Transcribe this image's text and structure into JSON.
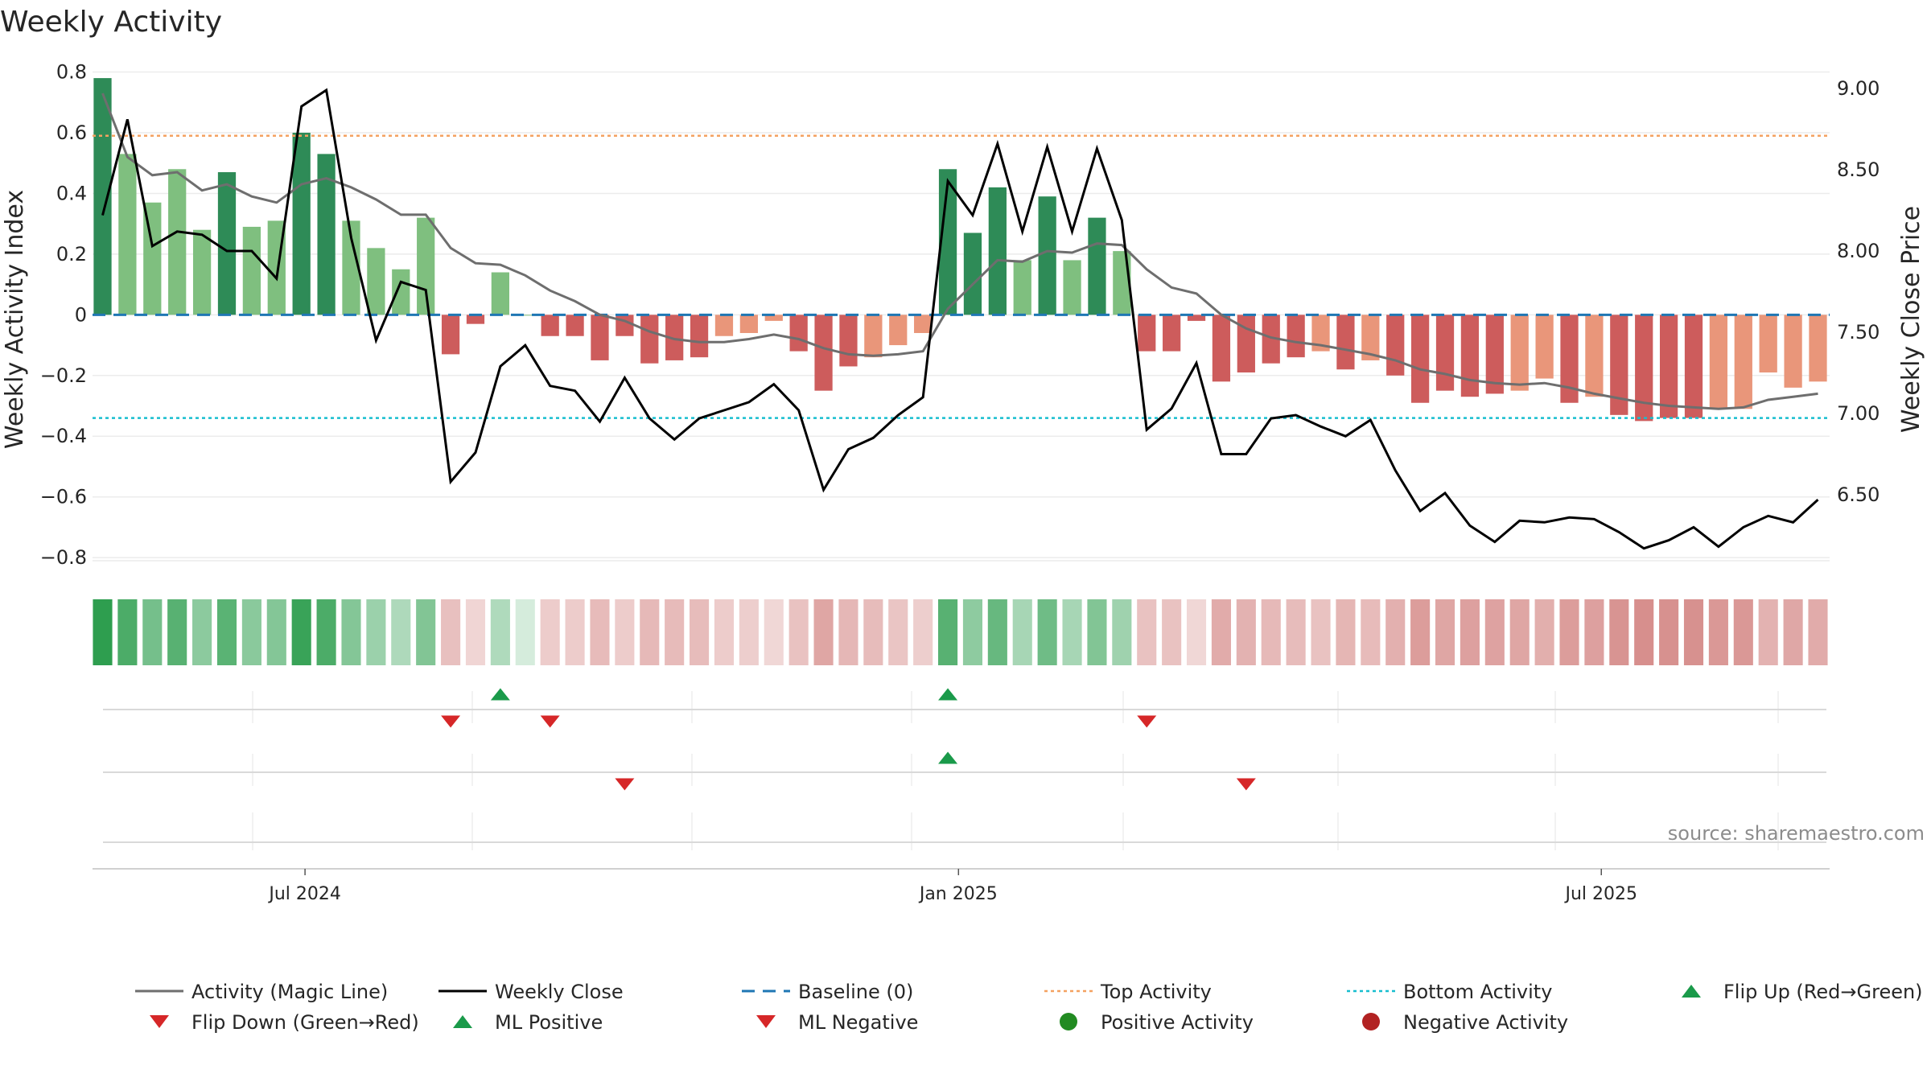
{
  "colors": {
    "strong_pos": "#2e8b57",
    "weak_pos": "#7fbf7f",
    "strong_neg": "#cd5c5c",
    "weak_neg": "#e9967a",
    "magic": "#6e6e6e",
    "close": "#000000",
    "baseline": "#1f77b4",
    "top": "#f4a261",
    "bottom": "#17becf",
    "flip_up": "#1a9a4a",
    "flip_down": "#d62728",
    "pos_dot": "#228b22",
    "neg_dot": "#b22222"
  },
  "chart_data": {
    "type": "bar",
    "title": "Weekly Activity",
    "ylabel": "Weekly Activity Index",
    "y2label": "Weekly Close Price",
    "ylim": [
      -0.85,
      0.82
    ],
    "y2lim": [
      6.1,
      9.1
    ],
    "yticks": [
      0.8,
      0.6,
      0.4,
      0.2,
      0,
      -0.2,
      -0.4,
      -0.6,
      -0.8
    ],
    "ytick_labels": [
      "0.8",
      "0.6",
      "0.4",
      "0.2",
      "0",
      "−0.2",
      "−0.4",
      "−0.6",
      "−0.8"
    ],
    "y2ticks": [
      9.0,
      8.5,
      8.0,
      7.5,
      7.0,
      6.5
    ],
    "y2tick_labels": [
      "9.00",
      "8.50",
      "8.00",
      "7.50",
      "7.00",
      "6.50"
    ],
    "x": [
      "2024-05-05",
      "2024-05-12",
      "2024-05-19",
      "2024-05-26",
      "2024-06-02",
      "2024-06-09",
      "2024-06-16",
      "2024-06-23",
      "2024-06-30",
      "2024-07-07",
      "2024-07-14",
      "2024-07-21",
      "2024-07-28",
      "2024-08-04",
      "2024-08-11",
      "2024-08-18",
      "2024-08-25",
      "2024-09-01",
      "2024-09-08",
      "2024-09-15",
      "2024-09-22",
      "2024-09-29",
      "2024-10-06",
      "2024-10-13",
      "2024-10-20",
      "2024-10-27",
      "2024-11-03",
      "2024-11-10",
      "2024-11-17",
      "2024-11-24",
      "2024-12-01",
      "2024-12-08",
      "2024-12-15",
      "2024-12-22",
      "2024-12-29",
      "2025-01-05",
      "2025-01-12",
      "2025-01-19",
      "2025-01-26",
      "2025-02-02",
      "2025-02-09",
      "2025-02-16",
      "2025-02-23",
      "2025-03-02",
      "2025-03-09",
      "2025-03-16",
      "2025-03-23",
      "2025-03-30",
      "2025-04-06",
      "2025-04-13",
      "2025-04-20",
      "2025-04-27",
      "2025-05-04",
      "2025-05-11",
      "2025-05-18",
      "2025-05-25",
      "2025-06-01",
      "2025-06-08",
      "2025-06-15",
      "2025-06-22",
      "2025-06-29",
      "2025-07-06",
      "2025-07-13",
      "2025-07-20",
      "2025-07-27",
      "2025-08-03",
      "2025-08-10",
      "2025-08-17",
      "2025-08-24",
      "2025-08-31"
    ],
    "activity": [
      0.78,
      0.53,
      0.37,
      0.48,
      0.28,
      0.47,
      0.29,
      0.31,
      0.6,
      0.53,
      0.31,
      0.22,
      0.15,
      0.32,
      -0.13,
      -0.03,
      0.14,
      0.0,
      -0.07,
      -0.07,
      -0.15,
      -0.07,
      -0.16,
      -0.15,
      -0.14,
      -0.07,
      -0.06,
      -0.02,
      -0.12,
      -0.25,
      -0.17,
      -0.14,
      -0.1,
      -0.06,
      0.48,
      0.27,
      0.42,
      0.18,
      0.39,
      0.18,
      0.32,
      0.21,
      -0.12,
      -0.12,
      -0.02,
      -0.22,
      -0.19,
      -0.16,
      -0.14,
      -0.12,
      -0.18,
      -0.15,
      -0.2,
      -0.29,
      -0.25,
      -0.27,
      -0.26,
      -0.25,
      -0.21,
      -0.29,
      -0.27,
      -0.33,
      -0.35,
      -0.34,
      -0.34,
      -0.31,
      -0.31,
      -0.19,
      -0.24,
      -0.22
    ],
    "magic": [
      0.73,
      0.52,
      0.46,
      0.47,
      0.41,
      0.43,
      0.39,
      0.37,
      0.43,
      0.45,
      0.42,
      0.38,
      0.33,
      0.33,
      0.22,
      0.17,
      0.165,
      0.13,
      0.08,
      0.045,
      0.0,
      -0.02,
      -0.055,
      -0.08,
      -0.09,
      -0.09,
      -0.08,
      -0.065,
      -0.08,
      -0.11,
      -0.13,
      -0.135,
      -0.13,
      -0.12,
      0.02,
      0.1,
      0.18,
      0.175,
      0.21,
      0.205,
      0.235,
      0.23,
      0.15,
      0.09,
      0.07,
      0.0,
      -0.045,
      -0.075,
      -0.09,
      -0.1,
      -0.115,
      -0.13,
      -0.15,
      -0.18,
      -0.195,
      -0.215,
      -0.225,
      -0.23,
      -0.225,
      -0.24,
      -0.26,
      -0.275,
      -0.29,
      -0.3,
      -0.305,
      -0.31,
      -0.305,
      -0.28,
      -0.27,
      -0.26
    ],
    "close": [
      8.22,
      8.81,
      8.03,
      8.12,
      8.1,
      8.0,
      8.0,
      7.83,
      8.89,
      8.99,
      8.08,
      7.45,
      7.81,
      7.76,
      6.58,
      6.76,
      7.29,
      7.42,
      7.17,
      7.14,
      6.95,
      7.22,
      6.97,
      6.84,
      6.97,
      7.02,
      7.07,
      7.18,
      7.02,
      6.53,
      6.78,
      6.85,
      6.99,
      7.1,
      8.43,
      8.22,
      8.66,
      8.12,
      8.64,
      8.12,
      8.63,
      8.19,
      6.9,
      7.03,
      7.31,
      6.75,
      6.75,
      6.97,
      6.99,
      6.92,
      6.86,
      6.96,
      6.65,
      6.4,
      6.51,
      6.31,
      6.21,
      6.34,
      6.33,
      6.36,
      6.35,
      6.27,
      6.17,
      6.22,
      6.3,
      6.18,
      6.3,
      6.37,
      6.33,
      6.47
    ],
    "baseline": 0,
    "top_activity": 0.59,
    "bottom_activity": -0.34,
    "flip_up_idx": [
      16,
      34
    ],
    "flip_down_idx": [
      14,
      18,
      42
    ],
    "ml_positive_idx": [
      34
    ],
    "ml_negative_idx": [
      21,
      46
    ],
    "xtick_labels": [
      {
        "label": "Jul 2024",
        "date": "2024-07-01"
      },
      {
        "label": "Jan 2025",
        "date": "2025-01-01"
      },
      {
        "label": "Jul 2025",
        "date": "2025-07-01"
      }
    ],
    "legend": [
      {
        "label": "Activity (Magic Line)",
        "kind": "line",
        "style": "magic"
      },
      {
        "label": "Weekly Close",
        "kind": "line",
        "style": "close"
      },
      {
        "label": "Baseline (0)",
        "kind": "dash",
        "style": "baseline"
      },
      {
        "label": "Top Activity",
        "kind": "dot-line",
        "style": "top"
      },
      {
        "label": "Bottom Activity",
        "kind": "dot-line",
        "style": "bottom"
      },
      {
        "label": "Flip Up (Red→Green)",
        "kind": "tri-up",
        "style": "flip_up"
      },
      {
        "label": "Flip Down (Green→Red)",
        "kind": "tri-down",
        "style": "flip_down"
      },
      {
        "label": "ML Positive",
        "kind": "tri-up",
        "style": "flip_up"
      },
      {
        "label": "ML Negative",
        "kind": "tri-down",
        "style": "flip_down"
      },
      {
        "label": "Positive Activity",
        "kind": "circle",
        "style": "pos_dot"
      },
      {
        "label": "Negative Activity",
        "kind": "circle",
        "style": "neg_dot"
      }
    ],
    "source": "source: sharemaestro.com"
  }
}
